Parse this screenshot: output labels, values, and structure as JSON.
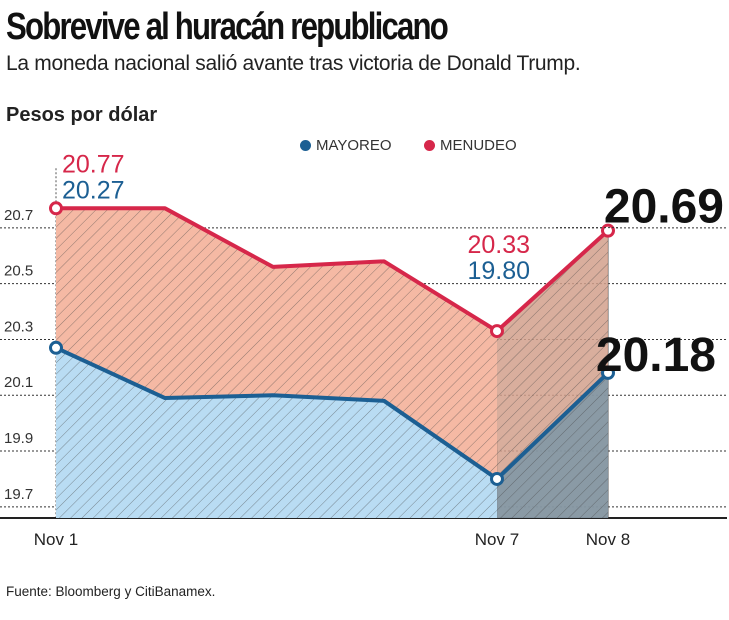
{
  "header": {
    "title": "Sobrevive al huracán republicano",
    "subtitle": "La moneda nacional salió avante tras victoria de Donald Trump.",
    "unit_label": "Pesos por dólar"
  },
  "source": "Fuente: Bloomberg y CitiBanamex.",
  "colors": {
    "mayoreo": "#1c5f93",
    "menudeo": "#d6274a",
    "mayoreo_fill": "#b9dcf3",
    "menudeo_fill": "#f5b9a4",
    "after_fill": "#d2a08c"
  },
  "chart_data": {
    "type": "area",
    "title": "Sobrevive al huracán republicano",
    "ylabel": "Pesos por dólar",
    "ylim": [
      19.7,
      20.8
    ],
    "yticks": [
      19.7,
      19.9,
      20.1,
      20.3,
      20.5,
      20.7
    ],
    "ytick_labels": [
      "19.7",
      "19.9",
      "20.1",
      "20.3",
      "20.5",
      "20.7"
    ],
    "x_index": [
      0,
      1,
      2,
      3,
      4,
      5
    ],
    "xtick_labels": [
      {
        "index": 0,
        "label": "Nov 1"
      },
      {
        "index": 4,
        "label": "Nov 7"
      },
      {
        "index": 5,
        "label": "Nov 8"
      }
    ],
    "legend": [
      "MAYOREO",
      "MENUDEO"
    ],
    "legend_position": "top-center",
    "series": [
      {
        "name": "MAYOREO",
        "values": [
          20.27,
          20.09,
          20.1,
          20.08,
          19.8,
          20.18
        ],
        "labels": [
          {
            "index": 0,
            "text": "20.27"
          },
          {
            "index": 4,
            "text": "19.80"
          },
          {
            "index": 5,
            "text": "20.18"
          }
        ]
      },
      {
        "name": "MENUDEO",
        "values": [
          20.77,
          20.77,
          20.56,
          20.58,
          20.33,
          20.69
        ],
        "labels": [
          {
            "index": 0,
            "text": "20.77"
          },
          {
            "index": 4,
            "text": "20.33"
          },
          {
            "index": 5,
            "text": "20.69"
          }
        ]
      }
    ]
  }
}
